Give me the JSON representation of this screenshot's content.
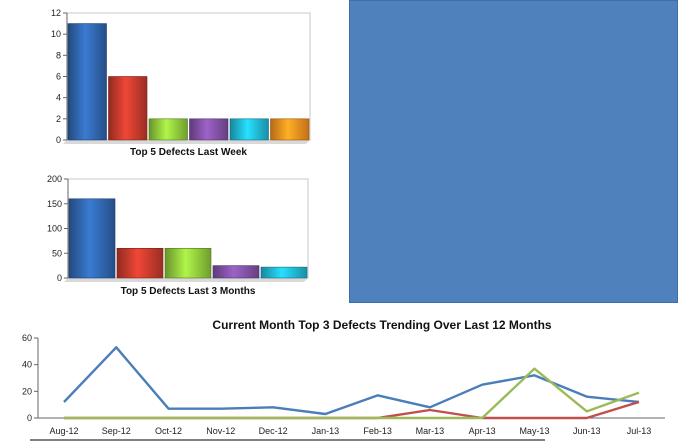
{
  "chart_data": [
    {
      "type": "bar",
      "title": "Top 5 Defects Last Week",
      "categories": [
        "",
        "",
        "",
        "",
        "",
        ""
      ],
      "values": [
        11,
        6,
        2,
        2,
        2,
        2
      ],
      "colors": [
        "#2e62a8",
        "#c0392b",
        "#8cc43a",
        "#7d4fa0",
        "#1fb3cf",
        "#f28c1e"
      ],
      "ylim": [
        0,
        12
      ],
      "yticks": [
        0,
        2,
        4,
        6,
        8,
        10,
        12
      ],
      "grid": false
    },
    {
      "type": "bar",
      "title": "Top 5 Defects Last 3 Months",
      "categories": [
        "",
        "",
        "",
        "",
        ""
      ],
      "values": [
        160,
        60,
        60,
        25,
        22
      ],
      "colors": [
        "#2e62a8",
        "#c0392b",
        "#8cc43a",
        "#7d4fa0",
        "#1fb3cf"
      ],
      "ylim": [
        0,
        200
      ],
      "yticks": [
        0,
        50,
        100,
        150,
        200
      ],
      "grid": false
    },
    {
      "type": "line",
      "title": "Current Month Top 3 Defects Trending Over Last 12 Months",
      "categories": [
        "Aug-12",
        "Sep-12",
        "Oct-12",
        "Nov-12",
        "Dec-12",
        "Jan-13",
        "Feb-13",
        "Mar-13",
        "Apr-13",
        "May-13",
        "Jun-13",
        "Jul-13"
      ],
      "series": [
        {
          "values": [
            12,
            53,
            7,
            7,
            8,
            3,
            17,
            8,
            25,
            32,
            16,
            12
          ],
          "color": "#4a7ebb"
        },
        {
          "values": [
            0,
            0,
            0,
            0,
            0,
            0,
            0,
            6,
            0,
            0,
            0,
            12
          ],
          "color": "#c0504d"
        },
        {
          "values": [
            0,
            0,
            0,
            0,
            0,
            0,
            0,
            0,
            0,
            37,
            5,
            19
          ],
          "color": "#9bbb59"
        }
      ],
      "ylim": [
        0,
        60
      ],
      "yticks": [
        0,
        20,
        40,
        60
      ],
      "grid": false
    }
  ]
}
